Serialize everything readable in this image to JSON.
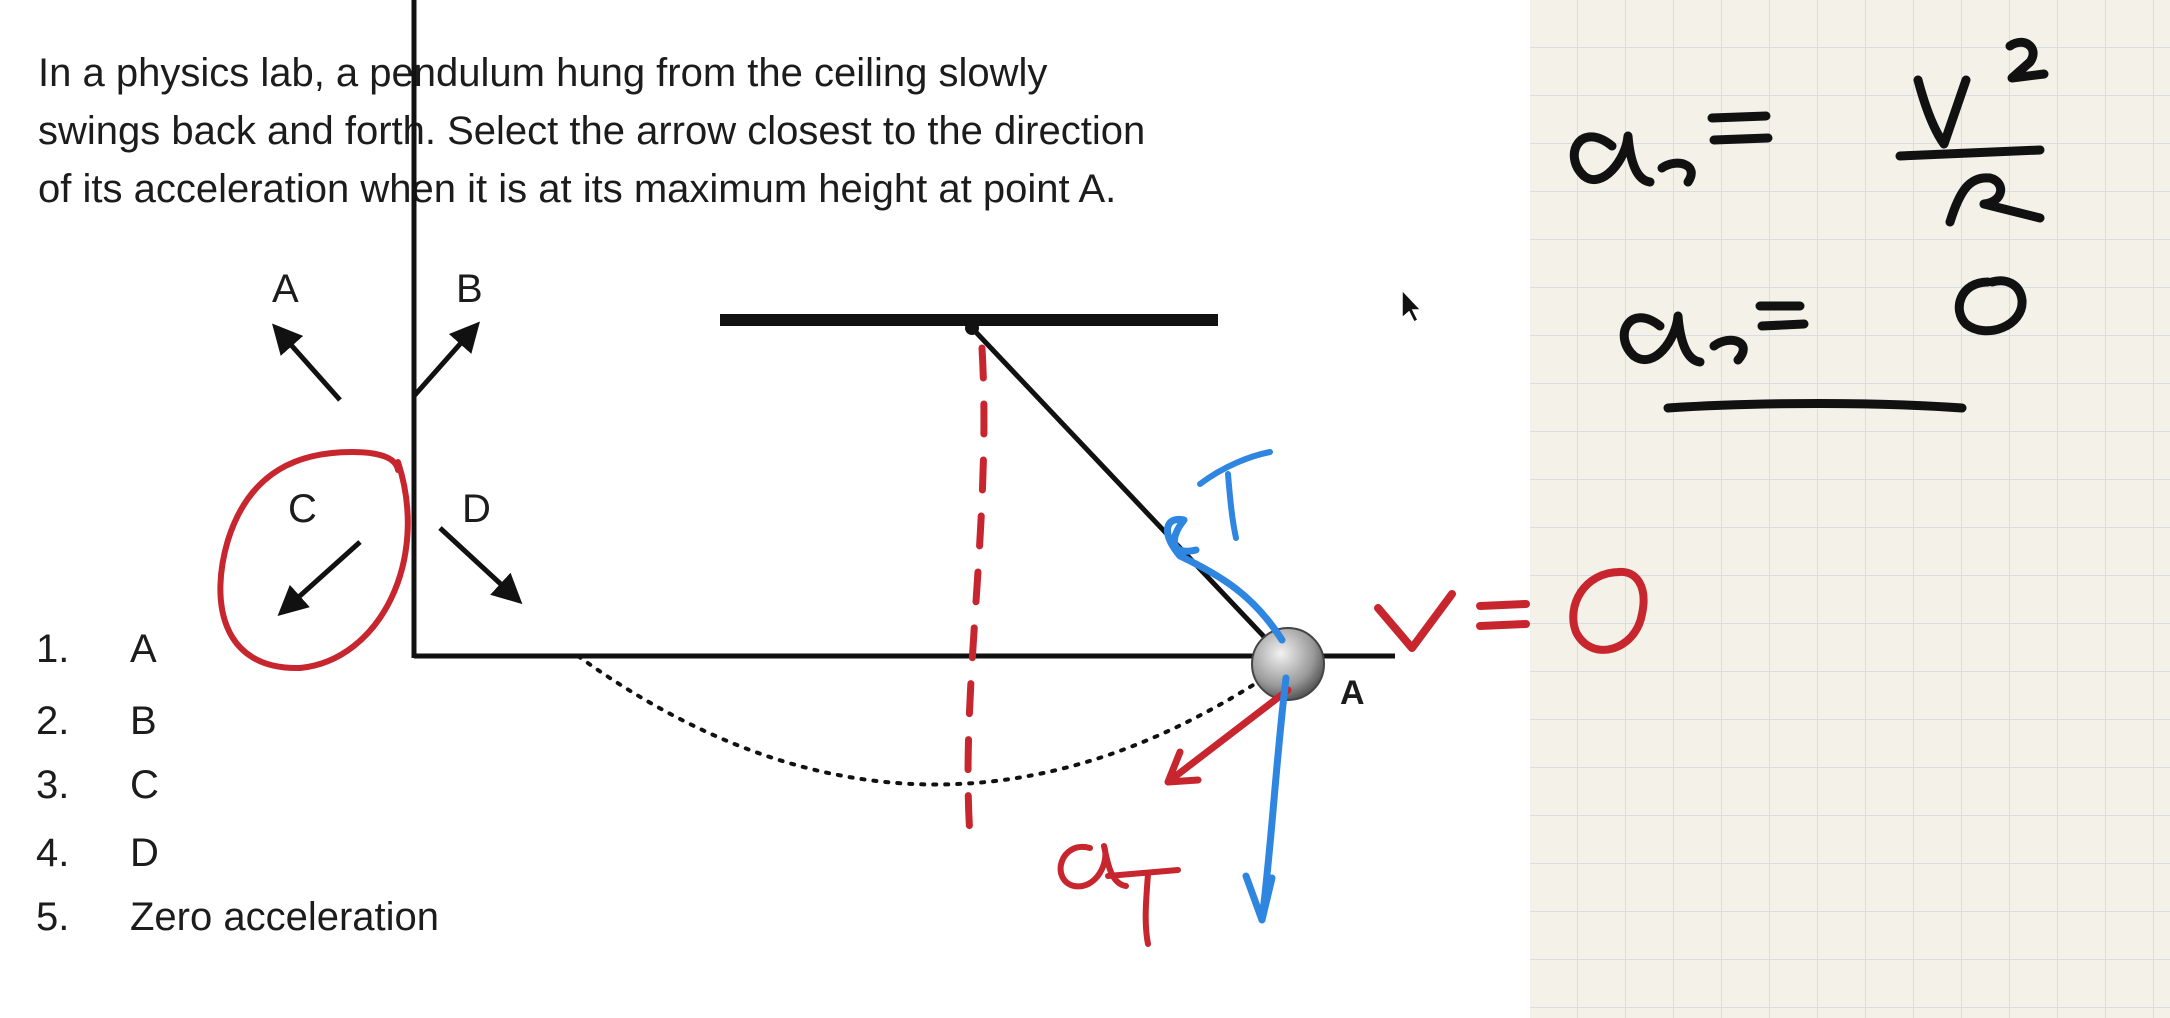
{
  "question": {
    "line1": "In a physics lab, a pendulum hung from the ceiling slowly",
    "line2": "swings back and forth. Select the arrow closest to the direction",
    "line3": "of its acceleration when it is at its maximum height at point A."
  },
  "arrow_labels": {
    "a": "A",
    "b": "B",
    "c": "C",
    "d": "D"
  },
  "point_label": "A",
  "options": [
    {
      "num": "1.",
      "text": "A"
    },
    {
      "num": "2.",
      "text": "B"
    },
    {
      "num": "3.",
      "text": "C"
    },
    {
      "num": "4.",
      "text": "D"
    },
    {
      "num": "5.",
      "text": "Zero acceleration"
    }
  ],
  "colors": {
    "annotation_red": "#c8262e",
    "annotation_blue": "#2f86e0",
    "grid_paper": "#f4f1e8"
  }
}
